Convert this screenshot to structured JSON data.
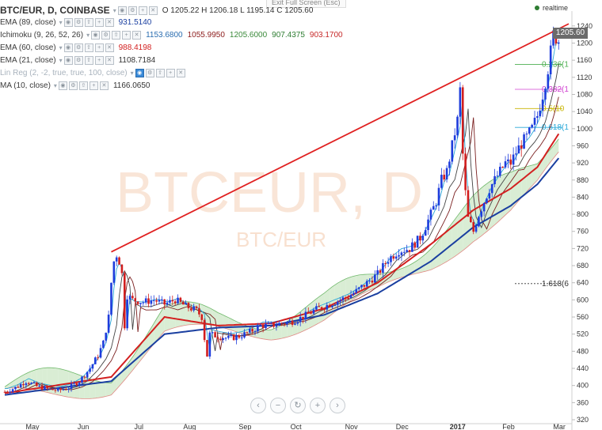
{
  "header": {
    "symbol": "BTC/EUR, D, COINBASE",
    "ohlc": "O 1205.22  H 1206.18  L 1195.14  C 1205.60",
    "exit_fullscreen": "Exit Full Screen (Esc)"
  },
  "indicators": [
    {
      "name": "EMA (89, close)",
      "values": [
        {
          "v": "931.5140",
          "color": "#1a3fa0"
        }
      ]
    },
    {
      "name": "Ichimoku (9, 26, 52, 26)",
      "values": [
        {
          "v": "1153.6800",
          "color": "#2a6db0"
        },
        {
          "v": "1055.9950",
          "color": "#8b1a1a"
        },
        {
          "v": "1205.6000",
          "color": "#3a8a3a"
        },
        {
          "v": "907.4375",
          "color": "#2e7d32"
        },
        {
          "v": "903.1700",
          "color": "#c62828"
        }
      ]
    },
    {
      "name": "EMA (60, close)",
      "values": [
        {
          "v": "988.4198",
          "color": "#d32020"
        }
      ]
    },
    {
      "name": "EMA (21, close)",
      "values": [
        {
          "v": "1108.7184",
          "color": "#333333"
        }
      ]
    },
    {
      "name": "Lin Reg (2, -2, true, true, 100, close)",
      "values": [],
      "dim": true
    },
    {
      "name": "MA (10, close)",
      "values": [
        {
          "v": "1166.0650",
          "color": "#333333"
        }
      ]
    }
  ],
  "realtime_label": "realtime",
  "watermark": {
    "big": "BTCEUR, D",
    "small": "BTC/EUR"
  },
  "last_price_label": "1205.60",
  "fib_labels": [
    {
      "text": "0.236(1",
      "value": 1150,
      "color": "#4caf50"
    },
    {
      "text": "0.382(1",
      "value": 1092,
      "color": "#d040d0"
    },
    {
      "text": "0.5(10",
      "value": 1047,
      "color": "#c8b400"
    },
    {
      "text": "0.618(1",
      "value": 1003,
      "color": "#29a8d8"
    },
    {
      "text": "1.618(6",
      "value": 638,
      "color": "#333333"
    }
  ],
  "chart_data": {
    "type": "candlestick",
    "x_ticks": [
      "May",
      "Jun",
      "Jul",
      "Aug",
      "Sep",
      "Oct",
      "Nov",
      "Dec",
      "2017",
      "Feb",
      "Mar"
    ],
    "y_ticks": [
      320,
      360,
      400,
      440,
      480,
      520,
      560,
      600,
      640,
      680,
      720,
      760,
      800,
      840,
      880,
      920,
      960,
      1000,
      1040,
      1080,
      1120,
      1160,
      1200,
      1240
    ],
    "ylim": [
      320,
      1260
    ],
    "price_path": [
      [
        0,
        385
      ],
      [
        4,
        395
      ],
      [
        8,
        410
      ],
      [
        12,
        398
      ],
      [
        16,
        392
      ],
      [
        20,
        388
      ],
      [
        24,
        395
      ],
      [
        28,
        410
      ],
      [
        32,
        440
      ],
      [
        35,
        470
      ],
      [
        37,
        500
      ],
      [
        39,
        560
      ],
      [
        40,
        640
      ],
      [
        41,
        690
      ],
      [
        42,
        705
      ],
      [
        43,
        690
      ],
      [
        44,
        660
      ],
      [
        45,
        540
      ],
      [
        46,
        610
      ],
      [
        48,
        600
      ],
      [
        52,
        595
      ],
      [
        56,
        600
      ],
      [
        60,
        590
      ],
      [
        64,
        600
      ],
      [
        68,
        585
      ],
      [
        72,
        575
      ],
      [
        74,
        560
      ],
      [
        75,
        510
      ],
      [
        76,
        470
      ],
      [
        77,
        520
      ],
      [
        80,
        515
      ],
      [
        84,
        510
      ],
      [
        88,
        515
      ],
      [
        92,
        525
      ],
      [
        96,
        540
      ],
      [
        100,
        540
      ],
      [
        104,
        545
      ],
      [
        108,
        550
      ],
      [
        112,
        560
      ],
      [
        116,
        575
      ],
      [
        120,
        585
      ],
      [
        124,
        595
      ],
      [
        128,
        605
      ],
      [
        132,
        620
      ],
      [
        136,
        640
      ],
      [
        140,
        660
      ],
      [
        144,
        695
      ],
      [
        148,
        715
      ],
      [
        152,
        720
      ],
      [
        156,
        745
      ],
      [
        160,
        800
      ],
      [
        162,
        830
      ],
      [
        164,
        880
      ],
      [
        166,
        900
      ],
      [
        168,
        960
      ],
      [
        170,
        1020
      ],
      [
        171,
        1090
      ],
      [
        172,
        940
      ],
      [
        173,
        850
      ],
      [
        174,
        790
      ],
      [
        176,
        760
      ],
      [
        178,
        800
      ],
      [
        180,
        830
      ],
      [
        182,
        860
      ],
      [
        184,
        880
      ],
      [
        186,
        900
      ],
      [
        188,
        920
      ],
      [
        190,
        920
      ],
      [
        192,
        945
      ],
      [
        194,
        965
      ],
      [
        196,
        980
      ],
      [
        198,
        1000
      ],
      [
        200,
        1030
      ],
      [
        202,
        1080
      ],
      [
        204,
        1140
      ],
      [
        206,
        1220
      ],
      [
        208,
        1205
      ]
    ],
    "ema89": [
      [
        0,
        378
      ],
      [
        40,
        410
      ],
      [
        60,
        520
      ],
      [
        80,
        535
      ],
      [
        100,
        540
      ],
      [
        120,
        565
      ],
      [
        140,
        615
      ],
      [
        160,
        690
      ],
      [
        176,
        770
      ],
      [
        190,
        820
      ],
      [
        200,
        870
      ],
      [
        208,
        931
      ]
    ],
    "ema60": [
      [
        0,
        382
      ],
      [
        40,
        420
      ],
      [
        60,
        560
      ],
      [
        80,
        540
      ],
      [
        100,
        545
      ],
      [
        120,
        580
      ],
      [
        140,
        640
      ],
      [
        160,
        730
      ],
      [
        176,
        810
      ],
      [
        190,
        860
      ],
      [
        200,
        910
      ],
      [
        208,
        988
      ]
    ],
    "trendline": {
      "from": [
        40,
        712
      ],
      "to": [
        208,
        1245
      ]
    }
  }
}
